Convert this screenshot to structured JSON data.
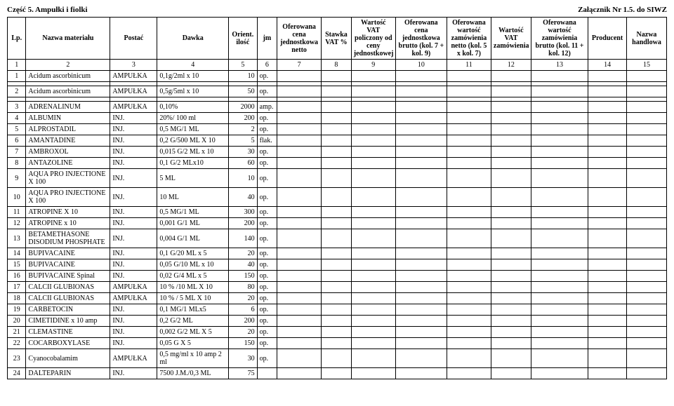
{
  "top": {
    "left": "Część 5. Ampułki i fiolki",
    "right": "Załącznik Nr 1.5. do SIWZ"
  },
  "headers": [
    "Lp.",
    "Nazwa materiału",
    "Postać",
    "Dawka",
    "Orient. ilość",
    "jm",
    "Oferowana cena jednostkowa netto",
    "Stawka VAT %",
    "Wartość VAT policzony od ceny jednostkowej",
    "Oferowana cena jednostkowa brutto (kol. 7 + kol. 9)",
    "Oferowana wartość zamówienia netto (kol. 5 x kol. 7)",
    "Wartość VAT zamówienia",
    "Oferowana wartość zamówienia brutto (kol. 11 + kol. 12)",
    "Producent",
    "Nazwa handlowa"
  ],
  "colnums": [
    "1",
    "2",
    "3",
    "4",
    "5",
    "6",
    "7",
    "8",
    "9",
    "10",
    "11",
    "12",
    "13",
    "14",
    "15"
  ],
  "rows": [
    {
      "lp": "1",
      "name": "Acidum ascorbinicum",
      "form": "AMPUŁKA",
      "dose": "0,1g/2ml x 10",
      "qty": "10",
      "jm": "op."
    },
    {
      "lp": "2",
      "name": "Acidum ascorbinicum",
      "form": "AMPUŁKA",
      "dose": "0,5g/5ml x 10",
      "qty": "50",
      "jm": "op.",
      "gap": true
    },
    {
      "lp": "3",
      "name": "ADRENALINUM",
      "form": "AMPUŁKA",
      "dose": "0,10%",
      "qty": "2000",
      "jm": "amp.",
      "gap": true
    },
    {
      "lp": "4",
      "name": "ALBUMIN",
      "form": "INJ.",
      "dose": "20%/ 100 ml",
      "qty": "200",
      "jm": "op."
    },
    {
      "lp": "5",
      "name": "ALPROSTADIL",
      "form": "INJ.",
      "dose": "0,5 MG/1 ML",
      "qty": "2",
      "jm": "op."
    },
    {
      "lp": "6",
      "name": "AMANTADINE",
      "form": "INJ.",
      "dose": "0,2 G/500 ML X 10",
      "qty": "5",
      "jm": "flak."
    },
    {
      "lp": "7",
      "name": "AMBROXOL",
      "form": "INJ.",
      "dose": "0,015 G/2 ML x 10",
      "qty": "30",
      "jm": "op."
    },
    {
      "lp": "8",
      "name": "ANTAZOLINE",
      "form": "INJ.",
      "dose": "0,1 G/2 MLx10",
      "qty": "60",
      "jm": "op."
    },
    {
      "lp": "9",
      "name": "AQUA PRO INJECTIONE X 100",
      "form": "INJ.",
      "dose": "5 ML",
      "qty": "10",
      "jm": "op."
    },
    {
      "lp": "10",
      "name": "AQUA PRO INJECTIONE X 100",
      "form": "INJ.",
      "dose": "10 ML",
      "qty": "40",
      "jm": "op."
    },
    {
      "lp": "11",
      "name": "ATROPINE X 10",
      "form": "INJ.",
      "dose": "0,5 MG/1 ML",
      "qty": "300",
      "jm": "op."
    },
    {
      "lp": "12",
      "name": "ATROPINE x 10",
      "form": "INJ.",
      "dose": "0,001 G/1 ML",
      "qty": "200",
      "jm": "op."
    },
    {
      "lp": "13",
      "name": "BETAMETHASONE DISODIUM PHOSPHATE",
      "form": "INJ.",
      "dose": "0,004 G/1 ML",
      "qty": "140",
      "jm": "op."
    },
    {
      "lp": "14",
      "name": "BUPIVACAINE",
      "form": "INJ.",
      "dose": "0,1 G/20 ML x 5",
      "qty": "20",
      "jm": "op."
    },
    {
      "lp": "15",
      "name": "BUPIVACAINE",
      "form": "INJ.",
      "dose": "0,05 G/10 ML x 10",
      "qty": "40",
      "jm": "op."
    },
    {
      "lp": "16",
      "name": "BUPIVACAINE Spinal",
      "form": "INJ.",
      "dose": "0,02 G/4 ML x 5",
      "qty": "150",
      "jm": "op."
    },
    {
      "lp": "17",
      "name": "CALCII GLUBIONAS",
      "form": "AMPUŁKA",
      "dose": "10 % /10 ML X 10",
      "qty": "80",
      "jm": "op."
    },
    {
      "lp": "18",
      "name": "CALCII GLUBIONAS",
      "form": "AMPUŁKA",
      "dose": "10 % / 5 ML X 10",
      "qty": "20",
      "jm": "op."
    },
    {
      "lp": "19",
      "name": "CARBETOCIN",
      "form": "INJ.",
      "dose": "0,1 MG/1 MLx5",
      "qty": "6",
      "jm": "op."
    },
    {
      "lp": "20",
      "name": "CIMETIDINE x 10 amp",
      "form": "INJ.",
      "dose": "0,2 G/2 ML",
      "qty": "200",
      "jm": "op."
    },
    {
      "lp": "21",
      "name": "CLEMASTINE",
      "form": "INJ.",
      "dose": "0,002 G/2 ML X 5",
      "qty": "20",
      "jm": "op."
    },
    {
      "lp": "22",
      "name": "COCARBOXYLASE",
      "form": "INJ.",
      "dose": "0,05 G X 5",
      "qty": "150",
      "jm": "op."
    },
    {
      "lp": "23",
      "name": "Cyanocobalamim",
      "form": "AMPUŁKA",
      "dose": "0,5 mg/ml x 10 amp 2 ml",
      "qty": "30",
      "jm": "op."
    },
    {
      "lp": "24",
      "name": "DALTEPARIN",
      "form": "INJ.",
      "dose": "7500 J.M./0,3 ML",
      "qty": "75",
      "jm": ""
    }
  ]
}
